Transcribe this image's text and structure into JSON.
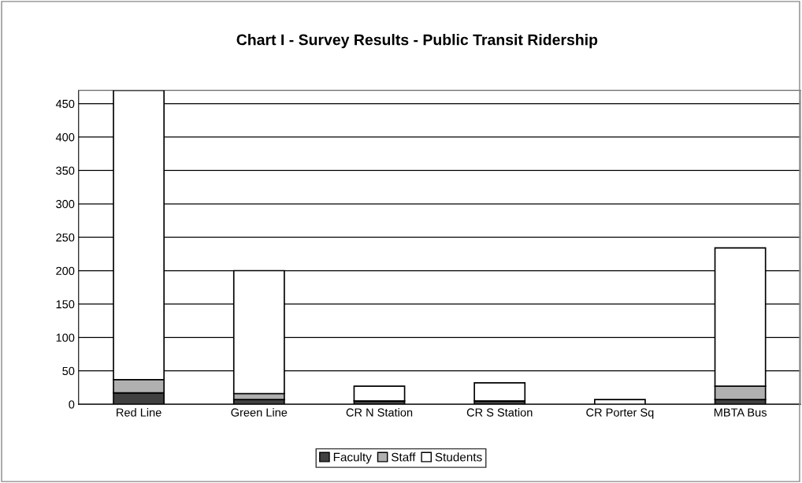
{
  "chart_data": {
    "type": "bar",
    "title": "Chart I - Survey Results - Public Transit Ridership",
    "categories": [
      "Red Line",
      "Green Line",
      "CR N Station",
      "CR S Station",
      "CR Porter Sq",
      "MBTA Bus"
    ],
    "stacked": true,
    "series": [
      {
        "name": "Faculty",
        "color": "#404040",
        "values": [
          17,
          7,
          5,
          5,
          0,
          7
        ]
      },
      {
        "name": "Staff",
        "color": "#b0b0b0",
        "values": [
          20,
          9,
          0,
          0,
          0,
          20
        ]
      },
      {
        "name": "Students",
        "color": "#ffffff",
        "values": [
          433,
          184,
          22,
          27,
          7,
          207
        ]
      }
    ],
    "ylim": [
      0,
      470
    ],
    "yticks": [
      0,
      50,
      100,
      150,
      200,
      250,
      300,
      350,
      400,
      450
    ],
    "grid": "y",
    "legend": "bottom"
  }
}
